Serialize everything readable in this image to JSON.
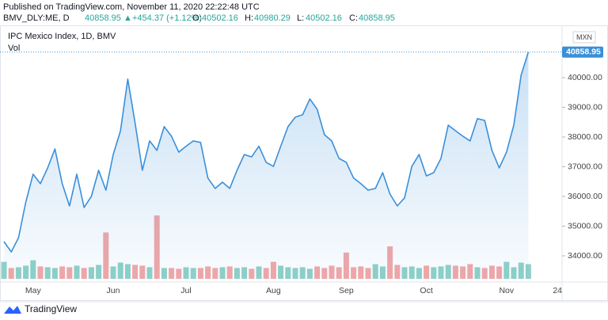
{
  "header": {
    "published": "Published on TradingView.com, November 11, 2020 22:22:48 UTC",
    "symbol": "BMV_DLY:ME, D",
    "last": "40858.95",
    "arrow": "▲",
    "change": "+454.37 (+1.12%)",
    "ohlc": [
      {
        "key": "O:",
        "value": "40502.16"
      },
      {
        "key": "H:",
        "value": "40980.29"
      },
      {
        "key": "L:",
        "value": "40502.16"
      },
      {
        "key": "C:",
        "value": "40858.95"
      }
    ]
  },
  "chart_data": {
    "type": "line",
    "currency": "MXN",
    "price_label": "40858.95",
    "categories": [
      null,
      null,
      null,
      null,
      "May",
      null,
      null,
      null,
      null,
      null,
      null,
      null,
      null,
      null,
      null,
      "Jun",
      null,
      null,
      null,
      null,
      null,
      null,
      null,
      null,
      null,
      "Jul",
      null,
      null,
      null,
      null,
      null,
      null,
      null,
      null,
      null,
      null,
      null,
      "Aug",
      null,
      null,
      null,
      null,
      null,
      null,
      null,
      null,
      null,
      "Sep",
      null,
      null,
      null,
      null,
      null,
      null,
      null,
      null,
      null,
      null,
      "Oct",
      null,
      null,
      null,
      null,
      null,
      null,
      null,
      null,
      null,
      null,
      "Nov",
      null,
      null,
      null,
      null,
      null,
      null,
      "24"
    ],
    "series": [
      {
        "name": "IPC Mexico Index, 1D, BMV",
        "color": "#3a8fd9",
        "values": [
          34480,
          34130,
          34610,
          35810,
          36750,
          36430,
          36960,
          37600,
          36430,
          35680,
          36750,
          35630,
          36000,
          36880,
          36210,
          37410,
          38210,
          39950,
          38480,
          36880,
          37870,
          37550,
          38350,
          38030,
          37490,
          37690,
          37870,
          37820,
          36620,
          36270,
          36480,
          36270,
          36880,
          37410,
          37330,
          37690,
          37150,
          37010,
          37690,
          38350,
          38670,
          38750,
          39280,
          38940,
          38080,
          37870,
          37280,
          37150,
          36620,
          36430,
          36210,
          36270,
          36800,
          36080,
          35680,
          35950,
          37010,
          37410,
          36690,
          36800,
          37280,
          38400,
          38210,
          38030,
          37870,
          38620,
          38560,
          37550,
          36960,
          37490,
          38400,
          40080,
          40858.95,
          null,
          null,
          null,
          null
        ]
      },
      {
        "name": "Vol",
        "axis": "y2",
        "color_up": "#8fd1c7",
        "color_down": "#f3a7a7",
        "values": [
          110,
          70,
          75,
          85,
          120,
          80,
          75,
          70,
          80,
          75,
          85,
          70,
          75,
          90,
          300,
          80,
          105,
          95,
          90,
          85,
          75,
          410,
          70,
          70,
          65,
          75,
          70,
          70,
          80,
          70,
          75,
          80,
          70,
          75,
          65,
          80,
          70,
          110,
          85,
          75,
          70,
          75,
          65,
          80,
          70,
          85,
          75,
          170,
          75,
          80,
          70,
          95,
          80,
          210,
          90,
          75,
          80,
          70,
          85,
          75,
          80,
          90,
          85,
          80,
          95,
          75,
          70,
          85,
          80,
          110,
          75,
          105,
          95,
          null,
          null,
          null,
          null
        ]
      }
    ],
    "ylim": [
      33226.7,
      41546.7
    ],
    "yticks": [
      {
        "value": 34000,
        "label": "34000.00"
      },
      {
        "value": 35000,
        "label": "35000.00"
      },
      {
        "value": 36000,
        "label": "36000.00"
      },
      {
        "value": 37000,
        "label": "37000.00"
      },
      {
        "value": 38000,
        "label": "38000.00"
      },
      {
        "value": 39000,
        "label": "39000.00"
      },
      {
        "value": 40000,
        "label": "40000.00"
      }
    ],
    "y2lim": [
      0,
      1600
    ]
  },
  "footer": {
    "brand": "TradingView"
  }
}
